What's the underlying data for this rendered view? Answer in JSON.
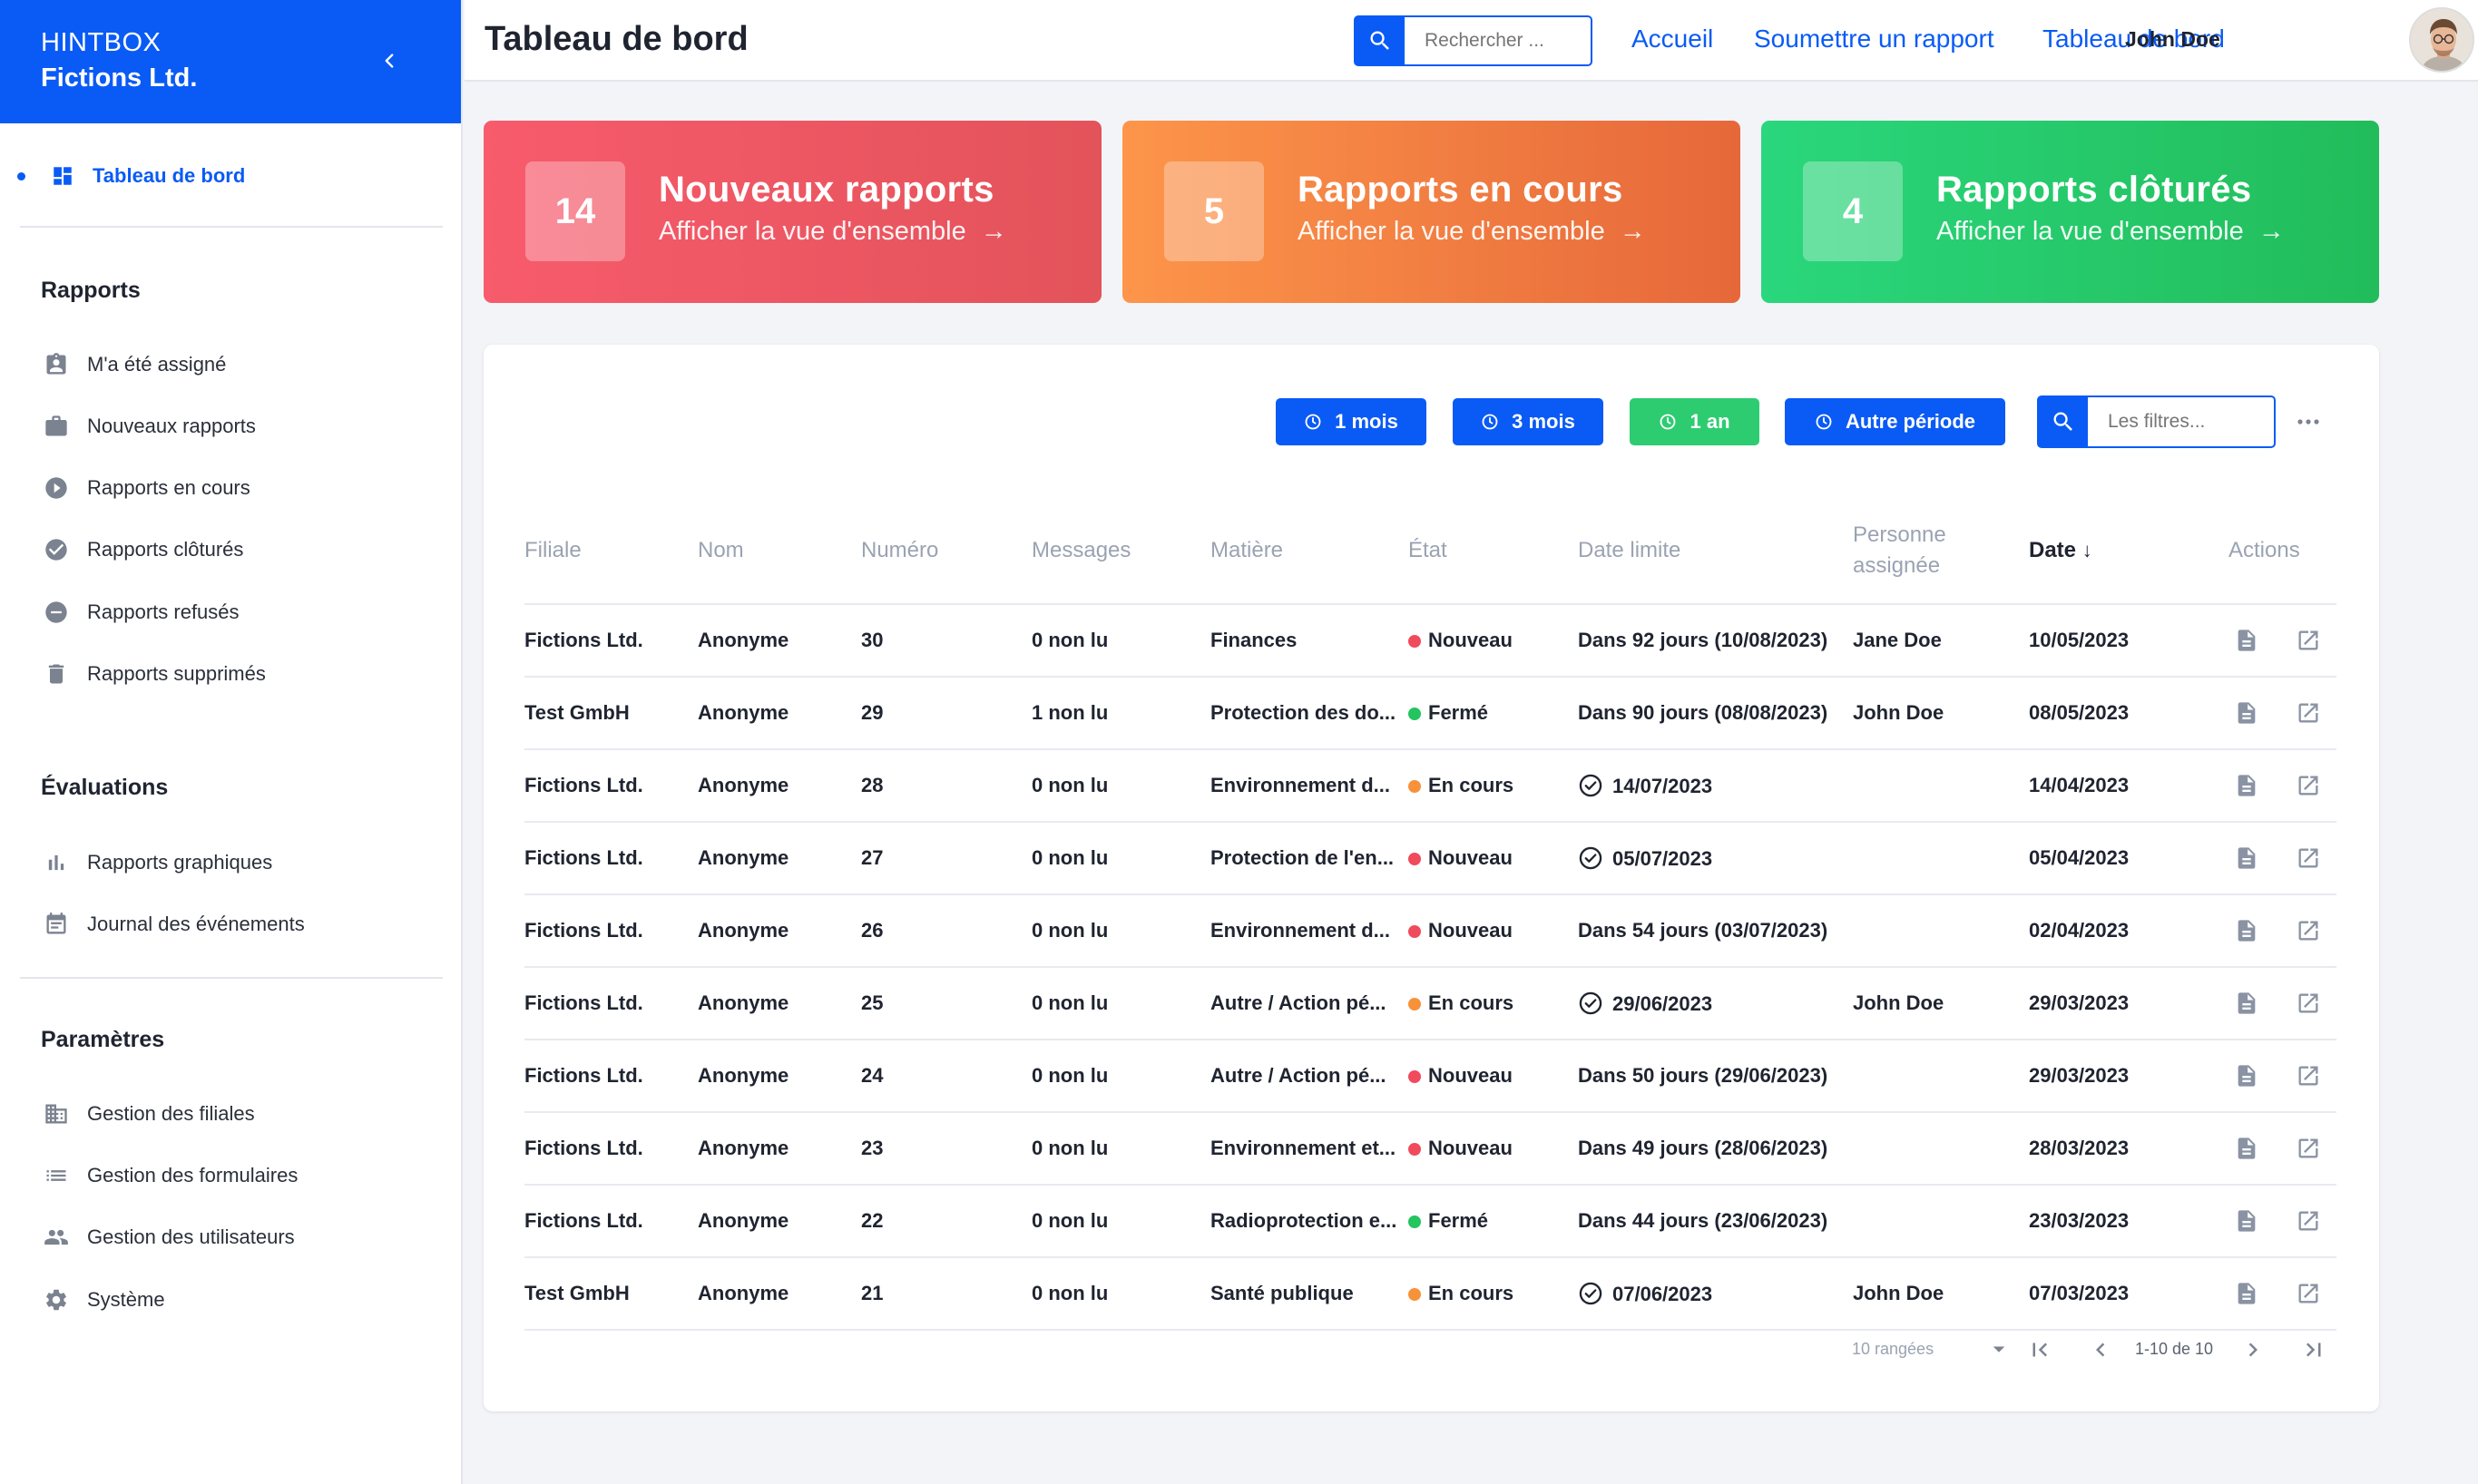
{
  "sidebar": {
    "brand_line1": "HINTBOX",
    "brand_line2": "Fictions Ltd.",
    "dashboard_label": "Tableau de bord",
    "sections": {
      "reports": "Rapports",
      "evaluations": "Évaluations",
      "settings": "Paramètres"
    },
    "reports_items": [
      {
        "label": "M'a été assigné",
        "icon": "assignment-ind-icon"
      },
      {
        "label": "Nouveaux rapports",
        "icon": "work-icon"
      },
      {
        "label": "Rapports en cours",
        "icon": "play-circle-icon"
      },
      {
        "label": "Rapports clôturés",
        "icon": "check-circle-icon"
      },
      {
        "label": "Rapports refusés",
        "icon": "remove-circle-icon"
      },
      {
        "label": "Rapports supprimés",
        "icon": "trash-icon"
      }
    ],
    "evaluations_items": [
      {
        "label": "Rapports graphiques",
        "icon": "bar-chart-icon"
      },
      {
        "label": "Journal des événements",
        "icon": "event-note-icon"
      }
    ],
    "settings_items": [
      {
        "label": "Gestion des filiales",
        "icon": "building-icon"
      },
      {
        "label": "Gestion des formulaires",
        "icon": "list-icon"
      },
      {
        "label": "Gestion des utilisateurs",
        "icon": "people-icon"
      },
      {
        "label": "Système",
        "icon": "gear-icon"
      }
    ]
  },
  "header": {
    "title": "Tableau de bord",
    "search_placeholder": "Rechercher ...",
    "links": [
      "Accueil",
      "Soumettre un rapport",
      "Tableau de bord"
    ],
    "user_name": "John Doe"
  },
  "cards": [
    {
      "count": "14",
      "title": "Nouveaux rapports",
      "subtitle": "Afficher la vue d'ensemble"
    },
    {
      "count": "5",
      "title": "Rapports en cours",
      "subtitle": "Afficher la vue d'ensemble"
    },
    {
      "count": "4",
      "title": "Rapports clôturés",
      "subtitle": "Afficher la vue d'ensemble"
    }
  ],
  "filters": {
    "periods": [
      "1 mois",
      "3 mois",
      "1 an",
      "Autre période"
    ],
    "active_period": "1 an",
    "search_placeholder": "Les filtres..."
  },
  "table": {
    "columns": [
      "Filiale",
      "Nom",
      "Numéro",
      "Messages",
      "Matière",
      "État",
      "Date limite",
      "Personne assignée",
      "Date",
      "Actions"
    ],
    "sorted_column": "Date",
    "rows": [
      {
        "filiale": "Fictions Ltd.",
        "nom": "Anonyme",
        "numero": "30",
        "messages": "0 non lu",
        "matiere": "Finances",
        "etat": "Nouveau",
        "date_limite": "Dans 92 jours (10/08/2023)",
        "done": false,
        "personne": "Jane Doe",
        "date": "10/05/2023"
      },
      {
        "filiale": "Test GmbH",
        "nom": "Anonyme",
        "numero": "29",
        "messages": "1 non lu",
        "matiere": "Protection des do...",
        "etat": "Fermé",
        "date_limite": "Dans 90 jours (08/08/2023)",
        "done": false,
        "personne": "John Doe",
        "date": "08/05/2023"
      },
      {
        "filiale": "Fictions Ltd.",
        "nom": "Anonyme",
        "numero": "28",
        "messages": "0 non lu",
        "matiere": "Environnement d...",
        "etat": "En cours",
        "date_limite": "14/07/2023",
        "done": true,
        "personne": "",
        "date": "14/04/2023"
      },
      {
        "filiale": "Fictions Ltd.",
        "nom": "Anonyme",
        "numero": "27",
        "messages": "0 non lu",
        "matiere": "Protection de l'en...",
        "etat": "Nouveau",
        "date_limite": "05/07/2023",
        "done": true,
        "personne": "",
        "date": "05/04/2023"
      },
      {
        "filiale": "Fictions Ltd.",
        "nom": "Anonyme",
        "numero": "26",
        "messages": "0 non lu",
        "matiere": "Environnement d...",
        "etat": "Nouveau",
        "date_limite": "Dans 54 jours (03/07/2023)",
        "done": false,
        "personne": "",
        "date": "02/04/2023"
      },
      {
        "filiale": "Fictions Ltd.",
        "nom": "Anonyme",
        "numero": "25",
        "messages": "0 non lu",
        "matiere": "Autre / Action pé...",
        "etat": "En cours",
        "date_limite": "29/06/2023",
        "done": true,
        "personne": "John Doe",
        "date": "29/03/2023"
      },
      {
        "filiale": "Fictions Ltd.",
        "nom": "Anonyme",
        "numero": "24",
        "messages": "0 non lu",
        "matiere": "Autre / Action pé...",
        "etat": "Nouveau",
        "date_limite": "Dans 50 jours (29/06/2023)",
        "done": false,
        "personne": "",
        "date": "29/03/2023"
      },
      {
        "filiale": "Fictions Ltd.",
        "nom": "Anonyme",
        "numero": "23",
        "messages": "0 non lu",
        "matiere": "Environnement et...",
        "etat": "Nouveau",
        "date_limite": "Dans 49 jours (28/06/2023)",
        "done": false,
        "personne": "",
        "date": "28/03/2023"
      },
      {
        "filiale": "Fictions Ltd.",
        "nom": "Anonyme",
        "numero": "22",
        "messages": "0 non lu",
        "matiere": "Radioprotection e...",
        "etat": "Fermé",
        "date_limite": "Dans 44 jours (23/06/2023)",
        "done": false,
        "personne": "",
        "date": "23/03/2023"
      },
      {
        "filiale": "Test GmbH",
        "nom": "Anonyme",
        "numero": "21",
        "messages": "0 non lu",
        "matiere": "Santé publique",
        "etat": "En cours",
        "date_limite": "07/06/2023",
        "done": true,
        "personne": "John Doe",
        "date": "07/03/2023"
      }
    ]
  },
  "pagination": {
    "rows_per_page": "10 rangées",
    "range": "1-10 de 10"
  },
  "colors": {
    "primary": "#0a5bf5",
    "green": "#22c55e",
    "status_new": "#ef4b5c",
    "status_closed": "#22c55e",
    "status_progress": "#f7923a"
  }
}
